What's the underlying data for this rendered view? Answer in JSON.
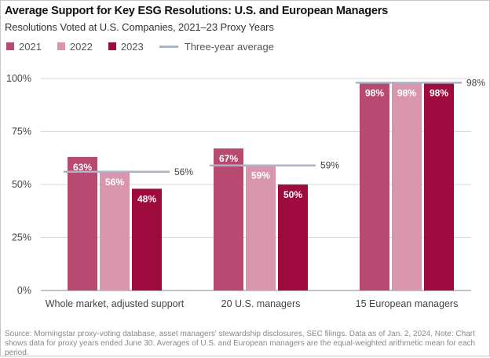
{
  "title": "Average Support for Key ESG Resolutions: U.S. and European Managers",
  "subtitle": "Resolutions Voted at U.S. Companies, 2021–23 Proxy Years",
  "legend": [
    {
      "label": "2021",
      "color": "#b84a72",
      "type": "bar"
    },
    {
      "label": "2022",
      "color": "#d997ad",
      "type": "bar"
    },
    {
      "label": "2023",
      "color": "#9e0b3e",
      "type": "bar"
    },
    {
      "label": "Three-year average",
      "color": "#a9b4c9",
      "type": "line"
    }
  ],
  "chart_data": {
    "type": "bar",
    "categories": [
      "Whole market, adjusted support",
      "20 U.S. managers",
      "15 European managers"
    ],
    "series": [
      {
        "name": "2021",
        "values": [
          63,
          67,
          98
        ],
        "labels": [
          "63%",
          "67%",
          "98%"
        ],
        "color": "#b84a72"
      },
      {
        "name": "2022",
        "values": [
          56,
          59,
          98
        ],
        "labels": [
          "56%",
          "59%",
          "98%"
        ],
        "color": "#d997ad"
      },
      {
        "name": "2023",
        "values": [
          48,
          50,
          98
        ],
        "labels": [
          "48%",
          "50%",
          "98%"
        ],
        "color": "#9e0b3e"
      }
    ],
    "averages": {
      "name": "Three-year average",
      "values": [
        56,
        59,
        98
      ],
      "labels": [
        "56%",
        "59%",
        "98%"
      ],
      "color": "#a9b4c9"
    },
    "ylim": [
      0,
      100
    ],
    "yticks": [
      0,
      25,
      50,
      75,
      100
    ],
    "ytick_labels": [
      "0%",
      "25%",
      "50%",
      "75%",
      "100%"
    ],
    "grid": true,
    "legend_position": "top-left",
    "xlabel": "",
    "ylabel": ""
  },
  "source": "Source: Morningstar proxy-voting database, asset managers' stewardship disclosures, SEC filings. Data as of Jan. 2, 2024. Note: Chart shows data for proxy years ended June 30. Averages of U.S. and European managers are the equal-weighted arithmetic mean for each period."
}
